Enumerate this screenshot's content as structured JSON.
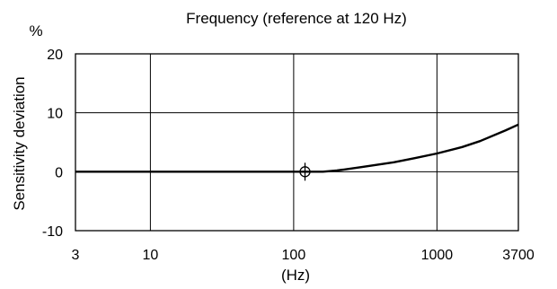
{
  "chart_data": {
    "type": "line",
    "title": "Frequency (reference at 120 Hz)",
    "xlabel": "(Hz)",
    "ylabel": "Sensitivity deviation",
    "y_unit": "%",
    "x_scale": "log",
    "xlim": [
      3,
      3700
    ],
    "ylim": [
      -10,
      20
    ],
    "x_ticks": [
      3,
      10,
      100,
      1000,
      3700
    ],
    "y_ticks": [
      -10,
      0,
      10,
      20
    ],
    "x_gridlines": [
      10,
      100,
      1000
    ],
    "y_gridlines": [
      0,
      10
    ],
    "grid": true,
    "reference": {
      "x": 120,
      "y": 0,
      "marker": "circle-crosshair"
    },
    "series": [
      {
        "points": [
          {
            "x": 3,
            "y": 0
          },
          {
            "x": 10,
            "y": 0
          },
          {
            "x": 50,
            "y": 0
          },
          {
            "x": 100,
            "y": 0
          },
          {
            "x": 160,
            "y": 0
          },
          {
            "x": 200,
            "y": 0.2
          },
          {
            "x": 300,
            "y": 0.8
          },
          {
            "x": 500,
            "y": 1.6
          },
          {
            "x": 700,
            "y": 2.3
          },
          {
            "x": 1000,
            "y": 3.1
          },
          {
            "x": 1500,
            "y": 4.2
          },
          {
            "x": 2000,
            "y": 5.2
          },
          {
            "x": 3000,
            "y": 7.0
          },
          {
            "x": 3700,
            "y": 8.0
          }
        ]
      }
    ]
  }
}
